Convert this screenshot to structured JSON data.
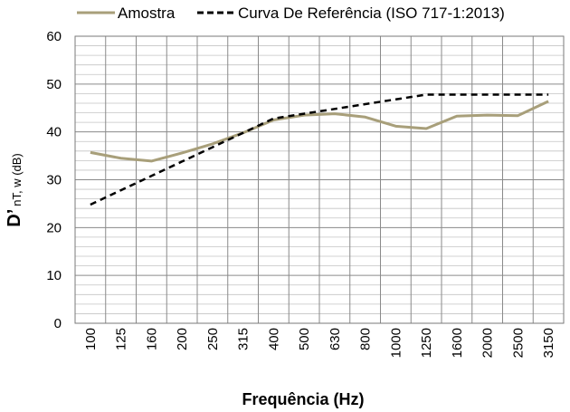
{
  "chart_data": {
    "type": "line",
    "categories": [
      "100",
      "125",
      "160",
      "200",
      "250",
      "315",
      "400",
      "500",
      "630",
      "800",
      "1000",
      "1250",
      "1600",
      "2000",
      "2500",
      "3150"
    ],
    "series": [
      {
        "name": "Amostra",
        "color": "#a89f7a",
        "style": "solid",
        "values": [
          35.7,
          34.5,
          33.9,
          35.6,
          37.5,
          39.8,
          42.5,
          43.5,
          43.8,
          43.1,
          41.2,
          40.7,
          43.3,
          43.5,
          43.4,
          46.4
        ]
      },
      {
        "name": "Curva De Referência (ISO 717-1:2013)",
        "color": "#000000",
        "style": "dashed",
        "values": [
          24.8,
          27.8,
          30.8,
          33.8,
          36.8,
          39.8,
          42.8,
          43.8,
          44.8,
          45.8,
          46.8,
          47.8,
          47.8,
          47.8,
          47.8,
          47.8
        ]
      }
    ],
    "xlabel": "Frequência (Hz)",
    "ylabel_main": "D’",
    "ylabel_sub": "nT, w (dB)",
    "ylim": [
      0,
      60
    ],
    "yticks": [
      "0",
      "10",
      "20",
      "30",
      "40",
      "50",
      "60"
    ],
    "grid": true,
    "legend_position": "top"
  }
}
